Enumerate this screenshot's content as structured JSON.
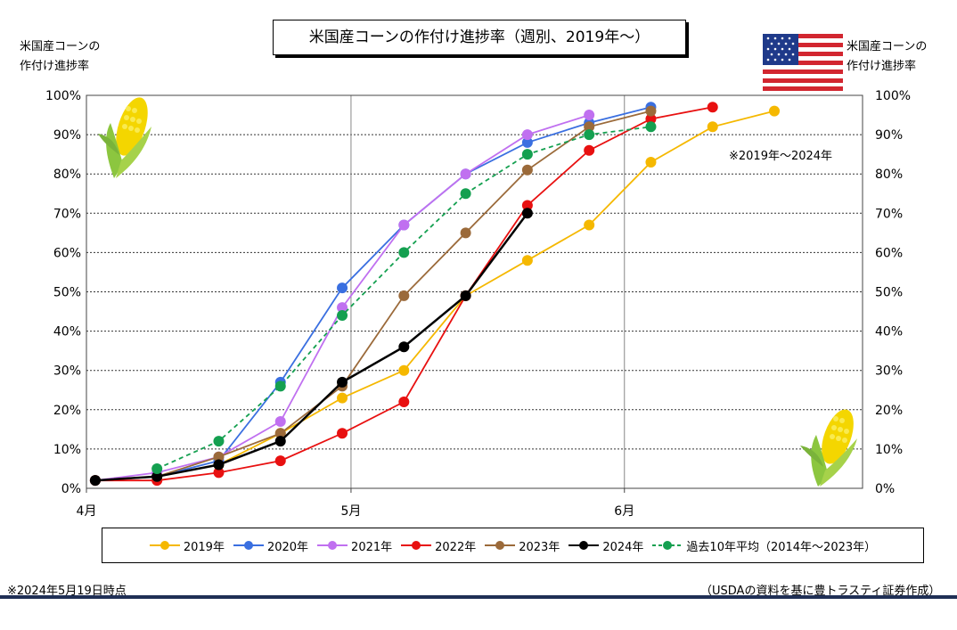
{
  "chart_data": {
    "type": "line",
    "title": "米国産コーンの作付け進捗率（週別、2019年～）",
    "ylabel_left": [
      "米国産コーンの",
      "作付け進捗率"
    ],
    "ylabel_right": [
      "米国産コーンの",
      "作付け進捗率"
    ],
    "x_axis_unit": "days since Apr 1",
    "x_ticks": [
      {
        "label": "4月",
        "value": 0
      },
      {
        "label": "5月",
        "value": 30
      },
      {
        "label": "6月",
        "value": 61
      }
    ],
    "xlim": [
      0,
      88
    ],
    "y_ticks": [
      "0%",
      "10%",
      "20%",
      "30%",
      "40%",
      "50%",
      "60%",
      "70%",
      "80%",
      "90%",
      "100%"
    ],
    "ylim": [
      0,
      100
    ],
    "grid": true,
    "legend_position": "bottom",
    "annotation_range": "※2019年～2024年",
    "note_date": "※2024年5月19日時点",
    "note_source": "（USDAの資料を基に豊トラスティ証券作成）",
    "series": [
      {
        "name": "2019年",
        "color": "#f5b800",
        "style": "solid",
        "x": [
          1,
          8,
          15,
          22,
          29,
          36,
          43,
          50,
          57,
          64,
          71,
          78
        ],
        "y": [
          2,
          3,
          6,
          14,
          23,
          30,
          49,
          58,
          67,
          83,
          92,
          96
        ]
      },
      {
        "name": "2020年",
        "color": "#3a6fe0",
        "style": "solid",
        "x": [
          1,
          8,
          15,
          22,
          29,
          36,
          43,
          50,
          57,
          64
        ],
        "y": [
          2,
          3,
          7,
          27,
          51,
          67,
          80,
          88,
          93,
          97
        ]
      },
      {
        "name": "2021年",
        "color": "#c070f0",
        "style": "solid",
        "x": [
          1,
          8,
          15,
          22,
          29,
          36,
          43,
          50,
          57
        ],
        "y": [
          2,
          4,
          8,
          17,
          46,
          67,
          80,
          90,
          95
        ]
      },
      {
        "name": "2022年",
        "color": "#e81010",
        "style": "solid",
        "x": [
          1,
          8,
          15,
          22,
          29,
          36,
          43,
          50,
          57,
          64,
          71
        ],
        "y": [
          2,
          2,
          4,
          7,
          14,
          22,
          49,
          72,
          86,
          94,
          97
        ]
      },
      {
        "name": "2023年",
        "color": "#9b6a3a",
        "style": "solid",
        "x": [
          1,
          8,
          15,
          22,
          29,
          36,
          43,
          50,
          57,
          64
        ],
        "y": [
          2,
          3,
          8,
          14,
          26,
          49,
          65,
          81,
          92,
          96
        ]
      },
      {
        "name": "2024年",
        "color": "#000000",
        "style": "solid",
        "x": [
          1,
          8,
          15,
          22,
          29,
          36,
          43,
          50
        ],
        "y": [
          2,
          3,
          6,
          12,
          27,
          36,
          49,
          70
        ]
      },
      {
        "name": "過去10年平均（2014年～2023年）",
        "color": "#14a050",
        "style": "dashed",
        "x": [
          8,
          15,
          22,
          29,
          36,
          43,
          50,
          57,
          64
        ],
        "y": [
          5,
          12,
          26,
          44,
          60,
          75,
          85,
          90,
          92
        ]
      }
    ]
  }
}
